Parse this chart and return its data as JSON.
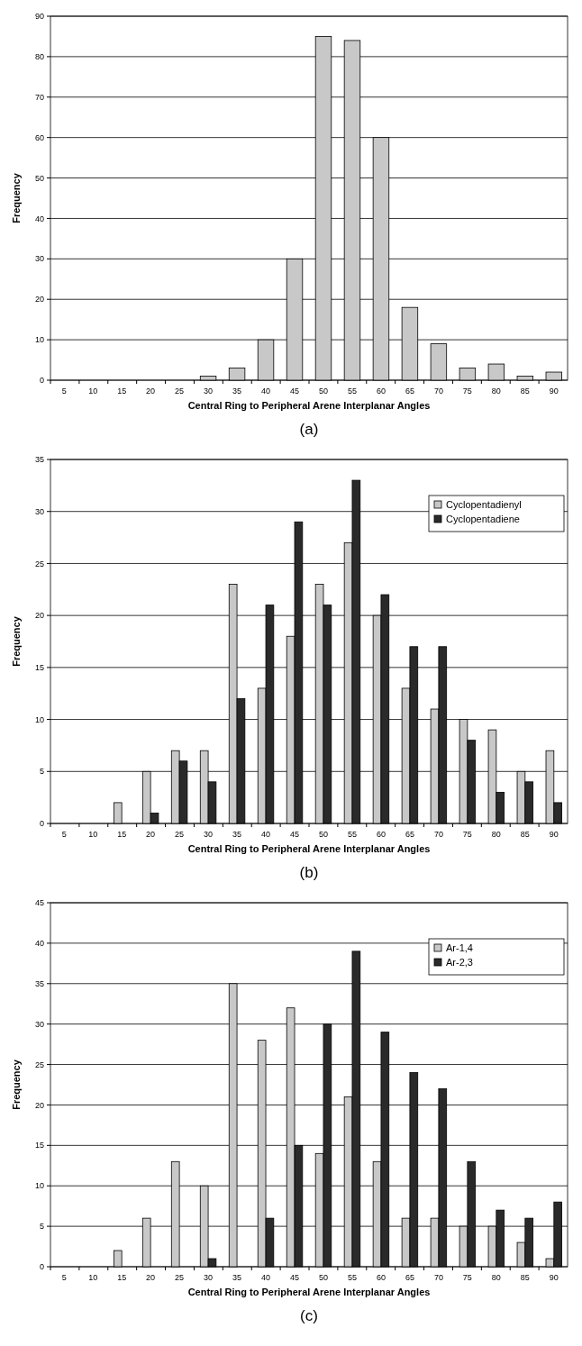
{
  "chart_data": [
    {
      "type": "bar",
      "categories": [
        "5",
        "10",
        "15",
        "20",
        "25",
        "30",
        "35",
        "40",
        "45",
        "50",
        "55",
        "60",
        "65",
        "70",
        "75",
        "80",
        "85",
        "90"
      ],
      "color": "#c8c8c8",
      "values": [
        0,
        0,
        0,
        0,
        0,
        1,
        3,
        10,
        30,
        85,
        84,
        60,
        18,
        9,
        3,
        4,
        1,
        2
      ],
      "xlabel": "Central Ring to Peripheral Arene Interplanar Angles",
      "ylabel": "Frequency",
      "ylim": [
        0,
        90
      ],
      "yticks": [
        0,
        10,
        20,
        30,
        40,
        50,
        60,
        70,
        80,
        90
      ],
      "grid": "y",
      "legend": false,
      "annotations": [
        "(a)"
      ]
    },
    {
      "type": "bar",
      "categories": [
        "5",
        "10",
        "15",
        "20",
        "25",
        "30",
        "35",
        "40",
        "45",
        "50",
        "55",
        "60",
        "65",
        "70",
        "75",
        "80",
        "85",
        "90"
      ],
      "series": [
        {
          "name": "Cyclopentadienyl",
          "color": "#c8c8c8",
          "values": [
            0,
            0,
            2,
            5,
            7,
            7,
            23,
            13,
            18,
            23,
            27,
            20,
            13,
            11,
            10,
            9,
            5,
            7
          ]
        },
        {
          "name": "Cyclopentadiene",
          "color": "#2a2a2a",
          "values": [
            0,
            0,
            0,
            1,
            6,
            4,
            12,
            21,
            29,
            21,
            33,
            22,
            17,
            17,
            8,
            3,
            4,
            2
          ]
        }
      ],
      "xlabel": "Central Ring to Peripheral Arene Interplanar Angles",
      "ylabel": "Frequency",
      "ylim": [
        0,
        35
      ],
      "yticks": [
        0,
        5,
        10,
        15,
        20,
        25,
        30,
        35
      ],
      "grid": "y",
      "legend": "top right",
      "annotations": [
        "(b)"
      ]
    },
    {
      "type": "bar",
      "categories": [
        "5",
        "10",
        "15",
        "20",
        "25",
        "30",
        "35",
        "40",
        "45",
        "50",
        "55",
        "60",
        "65",
        "70",
        "75",
        "80",
        "85",
        "90"
      ],
      "series": [
        {
          "name": "Ar-1,4",
          "color": "#c8c8c8",
          "values": [
            0,
            0,
            2,
            6,
            13,
            10,
            35,
            28,
            32,
            14,
            21,
            13,
            6,
            6,
            5,
            5,
            3,
            1
          ]
        },
        {
          "name": "Ar-2,3",
          "color": "#2a2a2a",
          "values": [
            0,
            0,
            0,
            0,
            0,
            1,
            0,
            6,
            15,
            30,
            39,
            29,
            24,
            22,
            13,
            7,
            6,
            8
          ]
        }
      ],
      "xlabel": "Central Ring to Peripheral Arene Interplanar Angles",
      "ylabel": "Frequency",
      "ylim": [
        0,
        45
      ],
      "yticks": [
        0,
        5,
        10,
        15,
        20,
        25,
        30,
        35,
        40,
        45
      ],
      "grid": "y",
      "legend": "top right",
      "annotations": [
        "(c)"
      ]
    }
  ]
}
